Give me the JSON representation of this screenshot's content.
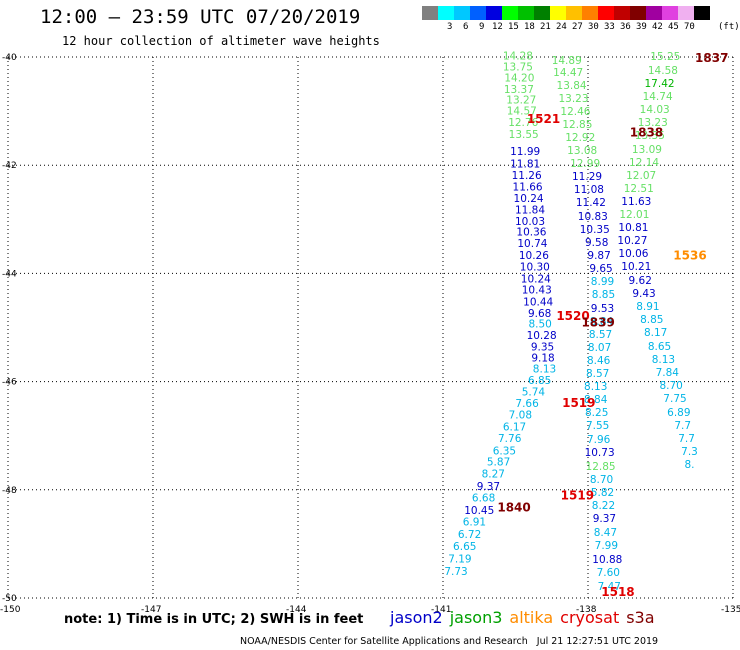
{
  "header": {
    "title": "12:00 — 23:59 UTC 07/20/2019",
    "subtitle": "12 hour collection of altimeter wave heights"
  },
  "color_scale": {
    "colors": [
      "#808080",
      "#00ffff",
      "#00c8ff",
      "#0060ff",
      "#0000e0",
      "#00ff00",
      "#00c000",
      "#008000",
      "#ffff00",
      "#ffc000",
      "#ff8000",
      "#ff0000",
      "#c00000",
      "#800000",
      "#a000a0",
      "#e040e0",
      "#f0b0f0",
      "#000000"
    ],
    "labels": [
      "3",
      "6",
      "9",
      "12",
      "15",
      "18",
      "21",
      "24",
      "27",
      "30",
      "33",
      "36",
      "39",
      "42",
      "45",
      "70"
    ],
    "unit": "(ft)"
  },
  "note": "note: 1) Time is in UTC; 2) SWH is in feet",
  "legend": [
    {
      "name": "jason2",
      "color": "#0000c8"
    },
    {
      "name": "jason3",
      "color": "#00a000"
    },
    {
      "name": "altika",
      "color": "#ff8c00"
    },
    {
      "name": "cryosat",
      "color": "#e00000"
    },
    {
      "name": "s3a",
      "color": "#800000"
    }
  ],
  "footer": "NOAA/NESDIS Center for Satellite Applications and Research   Jul 21 12:27:51 UTC 2019",
  "chart_data": {
    "type": "scatter",
    "xlim": [
      -150,
      -135
    ],
    "ylim": [
      -50,
      -40
    ],
    "x_ticks": [
      -150,
      -147,
      -144,
      -141,
      -138,
      -135
    ],
    "x_tick_labels": [
      "-150",
      "-147",
      "-144",
      "-141",
      "-138",
      "-135"
    ],
    "y_ticks": [
      -40,
      -42,
      -44,
      -46,
      -48,
      -50
    ],
    "y_tick_labels": [
      "-40",
      "-42",
      "-44",
      "-46",
      "-48",
      "-50"
    ],
    "grid": true,
    "swh_values": [
      {
        "lon": -139.45,
        "lat": -39.97,
        "v": "14.28",
        "c": "#66e066"
      },
      {
        "lon": -139.45,
        "lat": -40.18,
        "v": "13.75",
        "c": "#66e066"
      },
      {
        "lon": -139.42,
        "lat": -40.38,
        "v": "14.20",
        "c": "#66e066"
      },
      {
        "lon": -139.43,
        "lat": -40.59,
        "v": "13.37",
        "c": "#66e066"
      },
      {
        "lon": -139.38,
        "lat": -40.79,
        "v": "13.27",
        "c": "#66e066"
      },
      {
        "lon": -139.37,
        "lat": -40.99,
        "v": "14.57",
        "c": "#66e066"
      },
      {
        "lon": -139.34,
        "lat": -41.2,
        "v": "12.76",
        "c": "#66e066"
      },
      {
        "lon": -139.33,
        "lat": -41.42,
        "v": "13.55",
        "c": "#66e066"
      },
      {
        "lon": -139.3,
        "lat": -41.74,
        "v": "11.99",
        "c": "#0000c8"
      },
      {
        "lon": -139.3,
        "lat": -41.97,
        "v": "11.81",
        "c": "#0000c8"
      },
      {
        "lon": -139.27,
        "lat": -42.18,
        "v": "11.26",
        "c": "#0000c8"
      },
      {
        "lon": -139.25,
        "lat": -42.39,
        "v": "11.66",
        "c": "#0000c8"
      },
      {
        "lon": -139.23,
        "lat": -42.61,
        "v": "10.24",
        "c": "#0000c8"
      },
      {
        "lon": -139.2,
        "lat": -42.82,
        "v": "11.84",
        "c": "#0000c8"
      },
      {
        "lon": -139.2,
        "lat": -43.03,
        "v": "10.03",
        "c": "#0000c8"
      },
      {
        "lon": -139.17,
        "lat": -43.23,
        "v": "10.36",
        "c": "#0000c8"
      },
      {
        "lon": -139.15,
        "lat": -43.44,
        "v": "10.74",
        "c": "#0000c8"
      },
      {
        "lon": -139.12,
        "lat": -43.66,
        "v": "10.26",
        "c": "#0000c8"
      },
      {
        "lon": -139.1,
        "lat": -43.87,
        "v": "10.30",
        "c": "#0000c8"
      },
      {
        "lon": -139.08,
        "lat": -44.09,
        "v": "10.24",
        "c": "#0000c8"
      },
      {
        "lon": -139.06,
        "lat": -44.3,
        "v": "10.43",
        "c": "#0000c8"
      },
      {
        "lon": -139.03,
        "lat": -44.52,
        "v": "10.44",
        "c": "#0000c8"
      },
      {
        "lon": -139.0,
        "lat": -44.73,
        "v": "9.68",
        "c": "#0000c8"
      },
      {
        "lon": -138.99,
        "lat": -44.93,
        "v": "8.50",
        "c": "#00b4e6"
      },
      {
        "lon": -138.96,
        "lat": -45.14,
        "v": "10.28",
        "c": "#0000c8"
      },
      {
        "lon": -138.94,
        "lat": -45.35,
        "v": "9.35",
        "c": "#0000c8"
      },
      {
        "lon": -138.93,
        "lat": -45.55,
        "v": "9.18",
        "c": "#0000c8"
      },
      {
        "lon": -138.9,
        "lat": -45.76,
        "v": "8.13",
        "c": "#00b4e6"
      },
      {
        "lon": -139.0,
        "lat": -45.97,
        "v": "6.85",
        "c": "#00b4e6"
      },
      {
        "lon": -139.13,
        "lat": -46.18,
        "v": "5.74",
        "c": "#00b4e6"
      },
      {
        "lon": -139.26,
        "lat": -46.4,
        "v": "7.66",
        "c": "#00b4e6"
      },
      {
        "lon": -139.4,
        "lat": -46.61,
        "v": "7.08",
        "c": "#00b4e6"
      },
      {
        "lon": -139.52,
        "lat": -46.83,
        "v": "6.17",
        "c": "#00b4e6"
      },
      {
        "lon": -139.62,
        "lat": -47.04,
        "v": "7.76",
        "c": "#00b4e6"
      },
      {
        "lon": -139.73,
        "lat": -47.27,
        "v": "6.35",
        "c": "#00b4e6"
      },
      {
        "lon": -139.85,
        "lat": -47.48,
        "v": "5.87",
        "c": "#00b4e6"
      },
      {
        "lon": -139.96,
        "lat": -47.7,
        "v": "8.27",
        "c": "#00b4e6"
      },
      {
        "lon": -140.06,
        "lat": -47.93,
        "v": "9.37",
        "c": "#0000c8"
      },
      {
        "lon": -140.16,
        "lat": -48.14,
        "v": "6.68",
        "c": "#00b4e6"
      },
      {
        "lon": -140.25,
        "lat": -48.37,
        "v": "10.45",
        "c": "#0000c8"
      },
      {
        "lon": -140.35,
        "lat": -48.59,
        "v": "6.91",
        "c": "#00b4e6"
      },
      {
        "lon": -140.45,
        "lat": -48.82,
        "v": "6.72",
        "c": "#00b4e6"
      },
      {
        "lon": -140.55,
        "lat": -49.04,
        "v": "6.65",
        "c": "#00b4e6"
      },
      {
        "lon": -140.65,
        "lat": -49.27,
        "v": "7.19",
        "c": "#00b4e6"
      },
      {
        "lon": -140.73,
        "lat": -49.5,
        "v": "7.73",
        "c": "#00b4e6"
      },
      {
        "lon": -138.44,
        "lat": -40.06,
        "v": "14.89",
        "c": "#66e066"
      },
      {
        "lon": -138.41,
        "lat": -40.28,
        "v": "14.47",
        "c": "#66e066"
      },
      {
        "lon": -138.34,
        "lat": -40.52,
        "v": "13.84",
        "c": "#66e066"
      },
      {
        "lon": -138.3,
        "lat": -40.76,
        "v": "13.23",
        "c": "#66e066"
      },
      {
        "lon": -138.26,
        "lat": -41.0,
        "v": "12.46",
        "c": "#66e066"
      },
      {
        "lon": -138.22,
        "lat": -41.24,
        "v": "12.85",
        "c": "#66e066"
      },
      {
        "lon": -138.16,
        "lat": -41.48,
        "v": "12.92",
        "c": "#66e066"
      },
      {
        "lon": -138.12,
        "lat": -41.72,
        "v": "13.08",
        "c": "#66e066"
      },
      {
        "lon": -138.06,
        "lat": -41.96,
        "v": "12.99",
        "c": "#66e066"
      },
      {
        "lon": -138.02,
        "lat": -42.2,
        "v": "11.29",
        "c": "#0000c8"
      },
      {
        "lon": -137.98,
        "lat": -42.44,
        "v": "11.08",
        "c": "#0000c8"
      },
      {
        "lon": -137.94,
        "lat": -42.68,
        "v": "11.42",
        "c": "#0000c8"
      },
      {
        "lon": -137.9,
        "lat": -42.94,
        "v": "10.83",
        "c": "#0000c8"
      },
      {
        "lon": -137.86,
        "lat": -43.18,
        "v": "10.35",
        "c": "#0000c8"
      },
      {
        "lon": -137.82,
        "lat": -43.42,
        "v": "9.58",
        "c": "#0000c8"
      },
      {
        "lon": -137.77,
        "lat": -43.66,
        "v": "9.87",
        "c": "#0000c8"
      },
      {
        "lon": -137.73,
        "lat": -43.9,
        "v": "9.65",
        "c": "#0000c8"
      },
      {
        "lon": -137.7,
        "lat": -44.14,
        "v": "8.99",
        "c": "#00b4e6"
      },
      {
        "lon": -137.68,
        "lat": -44.38,
        "v": "8.85",
        "c": "#00b4e6"
      },
      {
        "lon": -137.7,
        "lat": -44.64,
        "v": "9.53",
        "c": "#0000c8"
      },
      {
        "lon": -137.72,
        "lat": -44.88,
        "v": "8.84",
        "c": "#00b4e6"
      },
      {
        "lon": -137.74,
        "lat": -45.12,
        "v": "8.57",
        "c": "#00b4e6"
      },
      {
        "lon": -137.76,
        "lat": -45.36,
        "v": "8.07",
        "c": "#00b4e6"
      },
      {
        "lon": -137.78,
        "lat": -45.6,
        "v": "8.46",
        "c": "#00b4e6"
      },
      {
        "lon": -137.8,
        "lat": -45.84,
        "v": "8.57",
        "c": "#00b4e6"
      },
      {
        "lon": -137.84,
        "lat": -46.08,
        "v": "8.13",
        "c": "#00b4e6"
      },
      {
        "lon": -137.84,
        "lat": -46.32,
        "v": "8.84",
        "c": "#00b4e6"
      },
      {
        "lon": -137.82,
        "lat": -46.56,
        "v": "8.25",
        "c": "#00b4e6"
      },
      {
        "lon": -137.8,
        "lat": -46.8,
        "v": "7.55",
        "c": "#00b4e6"
      },
      {
        "lon": -137.78,
        "lat": -47.06,
        "v": "7.96",
        "c": "#00b4e6"
      },
      {
        "lon": -137.76,
        "lat": -47.3,
        "v": "10.73",
        "c": "#0000c8"
      },
      {
        "lon": -137.74,
        "lat": -47.56,
        "v": "12.85",
        "c": "#66e066"
      },
      {
        "lon": -137.72,
        "lat": -47.8,
        "v": "8.70",
        "c": "#00b4e6"
      },
      {
        "lon": -137.7,
        "lat": -48.04,
        "v": "5.82",
        "c": "#00b4e6"
      },
      {
        "lon": -137.68,
        "lat": -48.28,
        "v": "8.22",
        "c": "#00b4e6"
      },
      {
        "lon": -137.66,
        "lat": -48.52,
        "v": "9.37",
        "c": "#0000c8"
      },
      {
        "lon": -137.64,
        "lat": -48.78,
        "v": "8.47",
        "c": "#00b4e6"
      },
      {
        "lon": -137.62,
        "lat": -49.02,
        "v": "7.99",
        "c": "#00b4e6"
      },
      {
        "lon": -137.6,
        "lat": -49.28,
        "v": "10.88",
        "c": "#0000c8"
      },
      {
        "lon": -137.58,
        "lat": -49.52,
        "v": "7.60",
        "c": "#00b4e6"
      },
      {
        "lon": -137.56,
        "lat": -49.78,
        "v": "7.47",
        "c": "#00b4e6"
      },
      {
        "lon": -136.4,
        "lat": -39.98,
        "v": "15.25",
        "c": "#66e066"
      },
      {
        "lon": -136.45,
        "lat": -40.24,
        "v": "14.58",
        "c": "#66e066"
      },
      {
        "lon": -136.52,
        "lat": -40.48,
        "v": "17.42",
        "c": "#00b400"
      },
      {
        "lon": -136.56,
        "lat": -40.72,
        "v": "14.74",
        "c": "#66e066"
      },
      {
        "lon": -136.62,
        "lat": -40.96,
        "v": "14.03",
        "c": "#66e066"
      },
      {
        "lon": -136.66,
        "lat": -41.2,
        "v": "13.23",
        "c": "#66e066"
      },
      {
        "lon": -136.72,
        "lat": -41.44,
        "v": "13.35",
        "c": "#66e066"
      },
      {
        "lon": -136.78,
        "lat": -41.7,
        "v": "13.09",
        "c": "#66e066"
      },
      {
        "lon": -136.84,
        "lat": -41.94,
        "v": "12.14",
        "c": "#66e066"
      },
      {
        "lon": -136.9,
        "lat": -42.18,
        "v": "12.07",
        "c": "#66e066"
      },
      {
        "lon": -136.95,
        "lat": -42.42,
        "v": "12.51",
        "c": "#66e066"
      },
      {
        "lon": -137.0,
        "lat": -42.66,
        "v": "11.63",
        "c": "#0000c8"
      },
      {
        "lon": -137.04,
        "lat": -42.9,
        "v": "12.01",
        "c": "#66e066"
      },
      {
        "lon": -137.06,
        "lat": -43.14,
        "v": "10.81",
        "c": "#0000c8"
      },
      {
        "lon": -137.08,
        "lat": -43.38,
        "v": "10.27",
        "c": "#0000c8"
      },
      {
        "lon": -137.06,
        "lat": -43.62,
        "v": "10.06",
        "c": "#0000c8"
      },
      {
        "lon": -137.0,
        "lat": -43.86,
        "v": "10.21",
        "c": "#0000c8"
      },
      {
        "lon": -136.92,
        "lat": -44.12,
        "v": "9.62",
        "c": "#0000c8"
      },
      {
        "lon": -136.84,
        "lat": -44.36,
        "v": "9.43",
        "c": "#0000c8"
      },
      {
        "lon": -136.76,
        "lat": -44.6,
        "v": "8.91",
        "c": "#00b4e6"
      },
      {
        "lon": -136.68,
        "lat": -44.84,
        "v": "8.85",
        "c": "#00b4e6"
      },
      {
        "lon": -136.6,
        "lat": -45.08,
        "v": "8.17",
        "c": "#00b4e6"
      },
      {
        "lon": -136.52,
        "lat": -45.34,
        "v": "8.65",
        "c": "#00b4e6"
      },
      {
        "lon": -136.44,
        "lat": -45.58,
        "v": "8.13",
        "c": "#00b4e6"
      },
      {
        "lon": -136.36,
        "lat": -45.82,
        "v": "7.84",
        "c": "#00b4e6"
      },
      {
        "lon": -136.28,
        "lat": -46.06,
        "v": "8.70",
        "c": "#00b4e6"
      },
      {
        "lon": -136.2,
        "lat": -46.3,
        "v": "7.75",
        "c": "#00b4e6"
      },
      {
        "lon": -136.12,
        "lat": -46.56,
        "v": "6.89",
        "c": "#00b4e6"
      },
      {
        "lon": -136.04,
        "lat": -46.8,
        "v": "7.7",
        "c": "#00b4e6"
      },
      {
        "lon": -135.96,
        "lat": -47.04,
        "v": "7.7",
        "c": "#00b4e6"
      },
      {
        "lon": -135.9,
        "lat": -47.28,
        "v": "7.3",
        "c": "#00b4e6"
      },
      {
        "lon": -135.9,
        "lat": -47.52,
        "v": "8.",
        "c": "#00b4e6"
      }
    ],
    "time_labels": [
      {
        "lon": -138.92,
        "lat": -41.13,
        "v": "1521",
        "c": "#e00000"
      },
      {
        "lon": -135.44,
        "lat": -40.0,
        "v": "1837",
        "c": "#800000"
      },
      {
        "lon": -136.79,
        "lat": -41.38,
        "v": "1838",
        "c": "#800000"
      },
      {
        "lon": -135.89,
        "lat": -43.65,
        "v": "1536",
        "c": "#ff8c00"
      },
      {
        "lon": -138.31,
        "lat": -44.77,
        "v": "1520",
        "c": "#e00000"
      },
      {
        "lon": -137.79,
        "lat": -44.89,
        "v": "1839",
        "c": "#800000"
      },
      {
        "lon": -138.19,
        "lat": -46.38,
        "v": "1519",
        "c": "#e00000"
      },
      {
        "lon": -138.22,
        "lat": -48.09,
        "v": "1519",
        "c": "#e00000"
      },
      {
        "lon": -139.53,
        "lat": -48.31,
        "v": "1840",
        "c": "#800000"
      },
      {
        "lon": -137.38,
        "lat": -49.87,
        "v": "1518",
        "c": "#e00000"
      }
    ]
  }
}
